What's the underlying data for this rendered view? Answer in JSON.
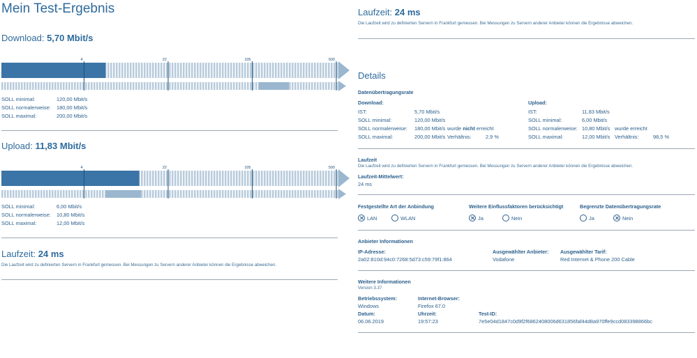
{
  "left": {
    "title": "Mein Test-Ergebnis",
    "download": {
      "label": "Download:",
      "value": "5,70 Mbit/s",
      "ticks": [
        "4",
        "22",
        "105",
        "500"
      ],
      "measured_fraction": 0.31,
      "soll_bar": {
        "start": 0.765,
        "end": 0.855
      },
      "soll_min_label": "SOLL minimal:",
      "soll_min": "120,00 Mbit/s",
      "soll_norm_label": "SOLL normalerweise:",
      "soll_norm": "180,00 Mbit/s",
      "soll_max_label": "SOLL maximal:",
      "soll_max": "200,00 Mbit/s"
    },
    "upload": {
      "label": "Upload:",
      "value": "11,83 Mbit/s",
      "ticks": [
        "4",
        "22",
        "105",
        "500"
      ],
      "measured_fraction": 0.41,
      "soll_bar": {
        "start": 0.31,
        "end": 0.415
      },
      "soll_min_label": "SOLL minimal:",
      "soll_min": "6,00 Mbit/s",
      "soll_norm_label": "SOLL normalerweise:",
      "soll_norm": "10,80 Mbit/s",
      "soll_max_label": "SOLL maximal:",
      "soll_max": "12,00 Mbit/s"
    },
    "latency": {
      "label": "Laufzeit:",
      "value": "24 ms",
      "note": "Die Laufzeit wird zu definierten Servern in Frankfurt gemessen. Bei Messungen zu Servern anderer Anbieter können die Ergebnisse abweichen."
    }
  },
  "right": {
    "latency": {
      "label": "Laufzeit:",
      "value": "24 ms",
      "note": "Die Laufzeit wird zu definierten Servern in Frankfurt gemessen. Bei Messungen zu Servern anderer Anbieter können die Ergebnisse abweichen."
    },
    "details_title": "Details",
    "rate": {
      "heading": "Datenübertragungsrate",
      "download": {
        "heading": "Download:",
        "ist_label": "IST:",
        "ist": "5,70 Mbit/s",
        "min_label": "SOLL minimal:",
        "min": "120,00 Mbit/s",
        "norm_label": "SOLL normalerweise:",
        "norm": "180,00 Mbit/s",
        "norm_note_pre": "wurde",
        "norm_note_bold": "nicht",
        "norm_note_post": "erreicht",
        "max_label": "SOLL maximal:",
        "max": "200,00 Mbit/s",
        "ratio_label": "Verhältnis:",
        "ratio": "2,9 %"
      },
      "upload": {
        "heading": "Upload:",
        "ist_label": "IST:",
        "ist": "11,83 Mbit/s",
        "min_label": "SOLL minimal:",
        "min": "6,00 Mbit/s",
        "norm_label": "SOLL normalerweise:",
        "norm": "10,80 Mbit/s",
        "norm_note": "wurde erreicht",
        "max_label": "SOLL maximal:",
        "max": "12,00 Mbit/s",
        "ratio_label": "Verhältnis:",
        "ratio": "98,5 %"
      }
    },
    "laufzeit": {
      "heading": "Laufzeit",
      "note": "Die Laufzeit wird zu definierten Servern in Frankfurt gemessen. Bei Messungen zu Servern anderer Anbieter können die Ergebnisse abweichen.",
      "mean_label": "Laufzeit-Mittelwert:",
      "mean": "24 ms"
    },
    "connection": {
      "heading": "Festgestellte Art der Anbindung",
      "options": [
        "LAN",
        "WLAN"
      ],
      "selected": "LAN"
    },
    "factors": {
      "heading": "Weitere Einflussfaktoren berücksichtigt",
      "options": [
        "Ja",
        "Nein"
      ],
      "selected": "Ja"
    },
    "limited": {
      "heading": "Begrenzte Datenübertragungsrate",
      "options": [
        "Ja",
        "Nein"
      ],
      "selected": "Nein"
    },
    "provider": {
      "heading": "Anbieter Informationen",
      "ip_label": "IP-Adresse:",
      "ip": "2a02:810d:94c0:7268:5d73:c59:79f1:864",
      "provider_label": "Ausgewählter Anbieter:",
      "provider": "Vodafone",
      "tariff_label": "Ausgewählter Tarif:",
      "tariff": "Red Internet & Phone 200 Cable"
    },
    "info": {
      "heading": "Weitere Informationen",
      "version": "Version 3.37",
      "os_label": "Betriebssystem:",
      "os": "Windows",
      "browser_label": "Internet-Browser:",
      "browser": "Firefox 67.0",
      "date_label": "Datum:",
      "date": "06.06.2019",
      "time_label": "Uhrzeit:",
      "time": "19:57:23",
      "testid_label": "Test-ID:",
      "testid": "7e5e04d1847c0d9f2f6862408006d631856faf44d8a970ffe9ccd083398866bc"
    }
  },
  "colors": {
    "primary": "#2e6a9c",
    "bar_dark": "#3b74a6",
    "bar_light": "#b9ccdc",
    "soll": "#9bb7cf",
    "rule": "#9aa7b3"
  }
}
